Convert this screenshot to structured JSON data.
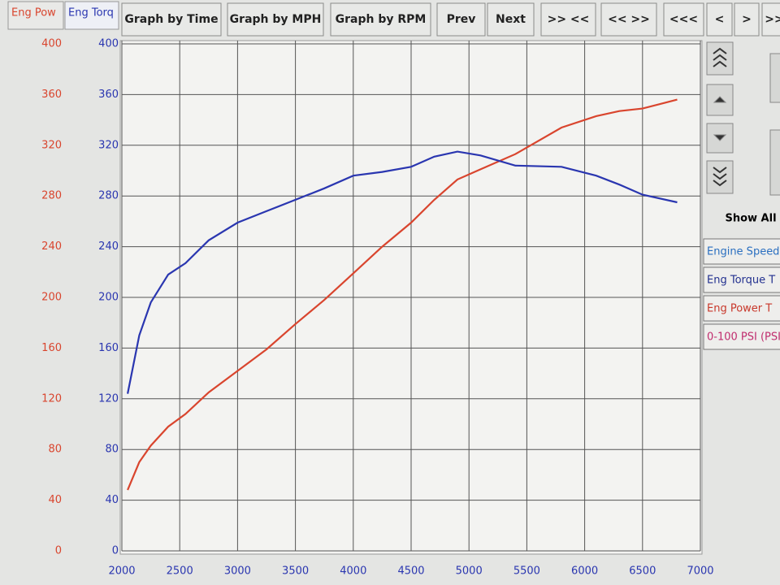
{
  "toolbar": {
    "buttons": [
      "Graph by Time",
      "Graph by MPH",
      "Graph by RPM",
      "Prev",
      "Next",
      ">> <<",
      "<< >>",
      "<<<",
      "<",
      ">",
      ">>"
    ]
  },
  "side_panel": {
    "show_all": "Show All",
    "channels": [
      "Engine Speed",
      "Eng Torque T",
      "Eng Power T",
      "0-100 PSI (PSI"
    ]
  },
  "chart_data": {
    "type": "line",
    "x": [
      2050,
      2150,
      2250,
      2400,
      2550,
      2750,
      3000,
      3250,
      3500,
      3750,
      4000,
      4250,
      4500,
      4700,
      4900,
      5100,
      5400,
      5800,
      6100,
      6300,
      6500,
      6800
    ],
    "series": [
      {
        "name": "Eng Pow",
        "color": "#d9452e",
        "axis": "y",
        "values": [
          48,
          70,
          83,
          98,
          108,
          125,
          142,
          159,
          179,
          198,
          219,
          240,
          259,
          277,
          293,
          301,
          313,
          334,
          343,
          347,
          349,
          356
        ]
      },
      {
        "name": "Eng Torq",
        "color": "#2a36b0",
        "axis": "y2",
        "values": [
          124,
          170,
          196,
          218,
          227,
          245,
          259,
          268,
          277,
          286,
          296,
          299,
          303,
          311,
          315,
          312,
          304,
          303,
          296,
          289,
          281,
          275
        ]
      }
    ],
    "xlim": [
      2000,
      7000
    ],
    "xticks": [
      2000,
      2500,
      3000,
      3500,
      4000,
      4500,
      5000,
      5500,
      6000,
      6500,
      7000
    ],
    "ylim": [
      0,
      400
    ],
    "yticks": [
      0,
      40,
      80,
      120,
      160,
      200,
      240,
      280,
      320,
      360,
      400
    ],
    "y2lim": [
      0,
      400
    ],
    "y2ticks": [
      0,
      40,
      80,
      120,
      160,
      200,
      240,
      280,
      320,
      360,
      400
    ],
    "grid": true
  }
}
